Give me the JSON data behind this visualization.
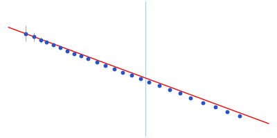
{
  "background_color": "#ffffff",
  "line_color": "#ff0000",
  "line_width": 1.0,
  "point_color": "#2255cc",
  "point_size": 18,
  "error_color": "#88aadd",
  "vline_color": "#aaccee",
  "vline_linewidth": 0.8,
  "x_data": [
    0.005,
    0.01,
    0.014,
    0.017,
    0.021,
    0.025,
    0.029,
    0.033,
    0.037,
    0.041,
    0.046,
    0.051,
    0.056,
    0.061,
    0.066,
    0.071,
    0.076,
    0.082,
    0.088,
    0.094,
    0.1,
    0.107,
    0.114,
    0.121,
    0.128
  ],
  "y_data": [
    5.1,
    5.05,
    5.0,
    4.97,
    4.93,
    4.88,
    4.83,
    4.79,
    4.75,
    4.71,
    4.66,
    4.6,
    4.55,
    4.5,
    4.45,
    4.4,
    4.35,
    4.29,
    4.23,
    4.17,
    4.1,
    4.03,
    3.96,
    3.89,
    3.82
  ],
  "yerr_data": [
    0.12,
    0.07,
    0.04,
    0.03,
    0.025,
    0.02,
    0.018,
    0.015,
    0.013,
    0.012,
    0.011,
    0.01,
    0.01,
    0.009,
    0.009,
    0.009,
    0.008,
    0.008,
    0.008,
    0.008,
    0.008,
    0.008,
    0.008,
    0.008,
    0.025
  ],
  "fit_x_start": -0.005,
  "fit_x_end": 0.145,
  "fit_slope": -10.0,
  "fit_intercept": 5.15,
  "vline_position": 0.074,
  "xlim": [
    -0.008,
    0.148
  ],
  "ylim": [
    3.5,
    5.6
  ]
}
